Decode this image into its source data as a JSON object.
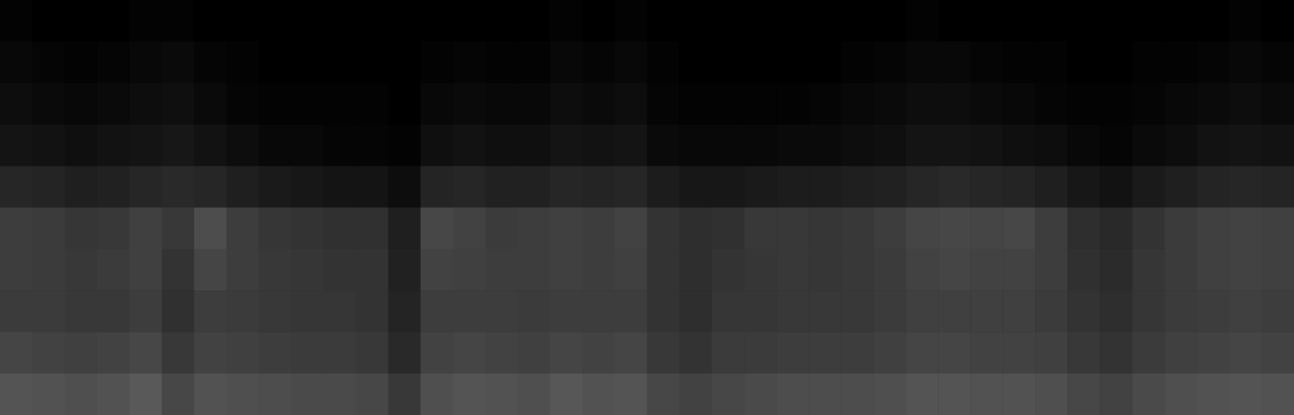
{
  "chart_data": {
    "type": "heatmap",
    "color": "#ffffff",
    "tick_labels": false,
    "values": [
      [
        1,
        0,
        0,
        0,
        1,
        1,
        0,
        0,
        0,
        0,
        0,
        0,
        0,
        0,
        0,
        0,
        0,
        1,
        0,
        1,
        0,
        0,
        0,
        0,
        0,
        0,
        0,
        0,
        1,
        0,
        0,
        0,
        0,
        0,
        0,
        0,
        0,
        0,
        1,
        0
      ],
      [
        3,
        2,
        1,
        2,
        3,
        4,
        2,
        1,
        0,
        0,
        0,
        0,
        0,
        1,
        2,
        1,
        1,
        3,
        2,
        3,
        1,
        0,
        0,
        0,
        0,
        0,
        1,
        2,
        3,
        3,
        2,
        1,
        1,
        0,
        0,
        1,
        1,
        2,
        3,
        2
      ],
      [
        5,
        4,
        3,
        4,
        5,
        6,
        4,
        2,
        1,
        1,
        1,
        1,
        0,
        3,
        4,
        3,
        3,
        5,
        4,
        5,
        2,
        1,
        1,
        1,
        1,
        2,
        3,
        4,
        5,
        5,
        4,
        3,
        2,
        1,
        1,
        2,
        3,
        4,
        5,
        4
      ],
      [
        8,
        7,
        6,
        7,
        8,
        9,
        7,
        5,
        3,
        3,
        2,
        2,
        1,
        6,
        7,
        6,
        6,
        8,
        7,
        8,
        4,
        3,
        3,
        3,
        4,
        4,
        5,
        6,
        8,
        8,
        7,
        6,
        5,
        3,
        2,
        4,
        5,
        7,
        8,
        7
      ],
      [
        15,
        14,
        12,
        13,
        15,
        16,
        15,
        12,
        10,
        9,
        8,
        8,
        5,
        14,
        15,
        13,
        13,
        15,
        14,
        15,
        11,
        9,
        9,
        10,
        11,
        11,
        12,
        13,
        15,
        16,
        15,
        14,
        12,
        9,
        7,
        10,
        12,
        14,
        15,
        14
      ],
      [
        24,
        23,
        21,
        22,
        25,
        22,
        30,
        24,
        21,
        20,
        19,
        19,
        12,
        28,
        26,
        23,
        24,
        25,
        24,
        26,
        20,
        18,
        19,
        22,
        22,
        21,
        22,
        24,
        27,
        28,
        27,
        28,
        24,
        18,
        16,
        20,
        23,
        25,
        26,
        25
      ],
      [
        24,
        23,
        22,
        23,
        25,
        20,
        27,
        24,
        22,
        21,
        20,
        20,
        13,
        26,
        25,
        24,
        24,
        25,
        24,
        25,
        20,
        18,
        20,
        21,
        22,
        21,
        22,
        23,
        26,
        27,
        26,
        26,
        24,
        19,
        17,
        21,
        23,
        25,
        26,
        25
      ],
      [
        23,
        23,
        22,
        22,
        24,
        19,
        24,
        23,
        22,
        21,
        21,
        20,
        14,
        24,
        24,
        24,
        23,
        24,
        24,
        24,
        20,
        18,
        21,
        21,
        22,
        22,
        22,
        23,
        25,
        25,
        25,
        25,
        23,
        20,
        18,
        21,
        23,
        24,
        25,
        24
      ],
      [
        27,
        26,
        25,
        26,
        28,
        22,
        26,
        25,
        24,
        23,
        23,
        22,
        16,
        26,
        27,
        26,
        25,
        27,
        26,
        27,
        22,
        20,
        23,
        23,
        24,
        24,
        24,
        25,
        27,
        27,
        26,
        26,
        25,
        22,
        20,
        23,
        25,
        26,
        27,
        26
      ],
      [
        33,
        32,
        31,
        32,
        35,
        28,
        32,
        31,
        30,
        29,
        29,
        28,
        22,
        31,
        33,
        32,
        31,
        34,
        32,
        33,
        28,
        26,
        28,
        29,
        30,
        30,
        30,
        31,
        33,
        33,
        32,
        32,
        31,
        28,
        26,
        29,
        31,
        32,
        33,
        32
      ]
    ]
  }
}
